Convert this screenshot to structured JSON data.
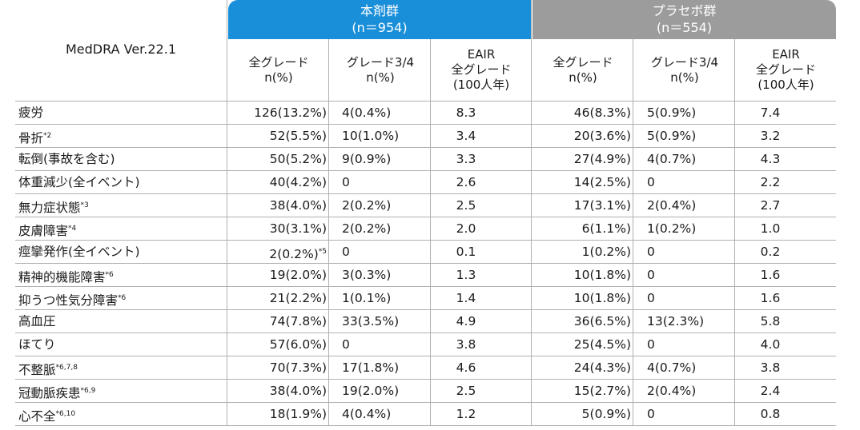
{
  "header": {
    "meddra": "MedDRA Ver.22.1",
    "groups": [
      {
        "name": "本剤群",
        "n": "(n＝954)"
      },
      {
        "name": "プラセボ群",
        "n": "(n＝554)"
      }
    ],
    "subcols": [
      [
        "全グレード",
        "n(%)"
      ],
      [
        "グレード3/4",
        "n(%)"
      ],
      [
        "EAIR",
        "全グレード",
        "(100人年)"
      ],
      [
        "全グレード",
        "n(%)"
      ],
      [
        "グレード3/4",
        "n(%)"
      ],
      [
        "EAIR",
        "全グレード",
        "(100人年)"
      ]
    ]
  },
  "rows": [
    {
      "label": "疲労",
      "sup": "",
      "c1": "126(13.2%)",
      "c1sup": "",
      "c2": "4(0.4%)",
      "c3": "8.3",
      "c4": "46(8.3%)",
      "c5": "5(0.9%)",
      "c6": "7.4"
    },
    {
      "label": "骨折",
      "sup": "*2",
      "c1": "52(5.5%)",
      "c1sup": "",
      "c2": "10(1.0%)",
      "c3": "3.4",
      "c4": "20(3.6%)",
      "c5": "5(0.9%)",
      "c6": "3.2"
    },
    {
      "label": "転倒(事故を含む)",
      "sup": "",
      "c1": "50(5.2%)",
      "c1sup": "",
      "c2": "9(0.9%)",
      "c3": "3.3",
      "c4": "27(4.9%)",
      "c5": "4(0.7%)",
      "c6": "4.3"
    },
    {
      "label": "体重減少(全イベント)",
      "sup": "",
      "c1": "40(4.2%)",
      "c1sup": "",
      "c2": "0",
      "c3": "2.6",
      "c4": "14(2.5%)",
      "c5": "0",
      "c6": "2.2"
    },
    {
      "label": "無力症状態",
      "sup": "*3",
      "c1": "38(4.0%)",
      "c1sup": "",
      "c2": "2(0.2%)",
      "c3": "2.5",
      "c4": "17(3.1%)",
      "c5": "2(0.4%)",
      "c6": "2.7"
    },
    {
      "label": "皮膚障害",
      "sup": "*4",
      "c1": "30(3.1%)",
      "c1sup": "",
      "c2": "2(0.2%)",
      "c3": "2.0",
      "c4": "6(1.1%)",
      "c5": "1(0.2%)",
      "c6": "1.0"
    },
    {
      "label": "痙攣発作(全イベント)",
      "sup": "",
      "c1": "2(0.2%)",
      "c1sup": "*5",
      "c2": "0",
      "c3": "0.1",
      "c4": "1(0.2%)",
      "c5": "0",
      "c6": "0.2"
    },
    {
      "label": "精神的機能障害",
      "sup": "*6",
      "c1": "19(2.0%)",
      "c1sup": "",
      "c2": "3(0.3%)",
      "c3": "1.3",
      "c4": "10(1.8%)",
      "c5": "0",
      "c6": "1.6"
    },
    {
      "label": "抑うつ性気分障害",
      "sup": "*6",
      "c1": "21(2.2%)",
      "c1sup": "",
      "c2": "1(0.1%)",
      "c3": "1.4",
      "c4": "10(1.8%)",
      "c5": "0",
      "c6": "1.6"
    },
    {
      "label": "高血圧",
      "sup": "",
      "c1": "74(7.8%)",
      "c1sup": "",
      "c2": "33(3.5%)",
      "c3": "4.9",
      "c4": "36(6.5%)",
      "c5": "13(2.3%)",
      "c6": "5.8"
    },
    {
      "label": "ほてり",
      "sup": "",
      "c1": "57(6.0%)",
      "c1sup": "",
      "c2": "0",
      "c3": "3.8",
      "c4": "25(4.5%)",
      "c5": "0",
      "c6": "4.0"
    },
    {
      "label": "不整脈",
      "sup": "*6,7,8",
      "c1": "70(7.3%)",
      "c1sup": "",
      "c2": "17(1.8%)",
      "c3": "4.6",
      "c4": "24(4.3%)",
      "c5": "4(0.7%)",
      "c6": "3.8"
    },
    {
      "label": "冠動脈疾患",
      "sup": "*6,9",
      "c1": "38(4.0%)",
      "c1sup": "",
      "c2": "19(2.0%)",
      "c3": "2.5",
      "c4": "15(2.7%)",
      "c5": "2(0.4%)",
      "c6": "2.4"
    },
    {
      "label": "心不全",
      "sup": "*6,10",
      "c1": "18(1.9%)",
      "c1sup": "",
      "c2": "4(0.4%)",
      "c3": "1.2",
      "c4": "5(0.9%)",
      "c5": "0",
      "c6": "0.8"
    }
  ]
}
